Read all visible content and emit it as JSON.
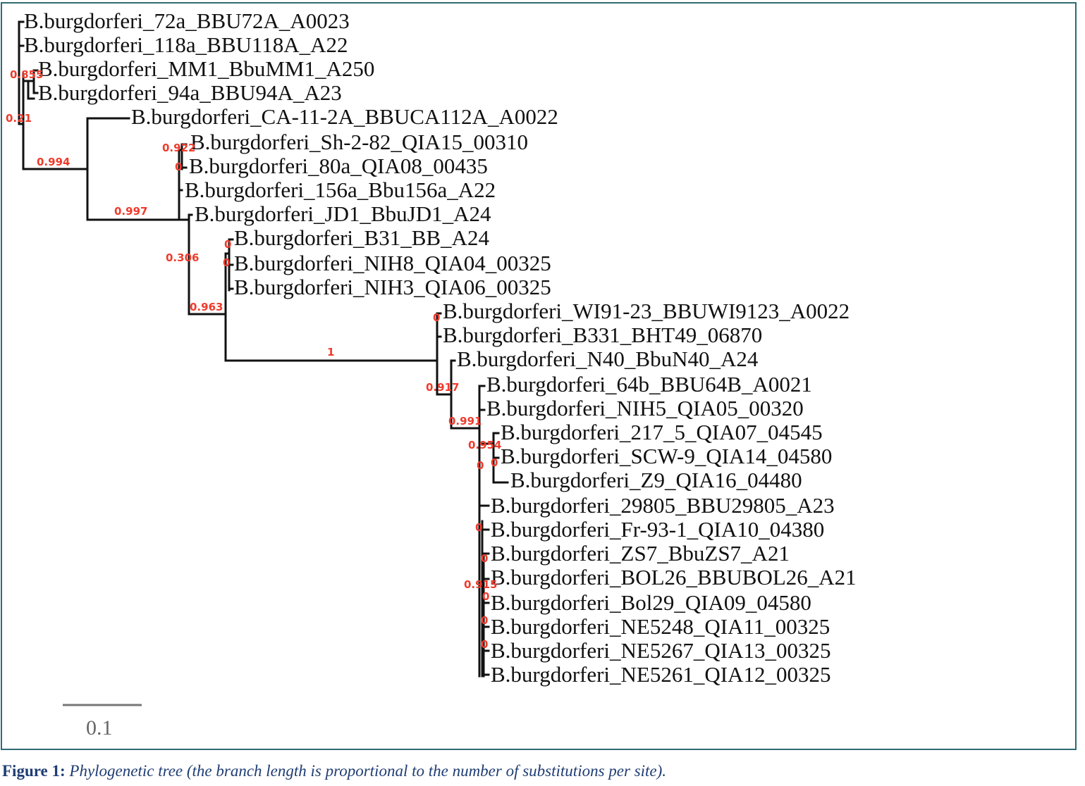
{
  "tree": {
    "leaves": [
      "B.burgdorferi_72a_BBU72A_A0023",
      "B.burgdorferi_118a_BBU118A_A22",
      "B.burgdorferi_MM1_BbuMM1_A250",
      "B.burgdorferi_94a_BBU94A_A23",
      "B.burgdorferi_CA-11-2A_BBUCA112A_A0022",
      "B.burgdorferi_Sh-2-82_QIA15_00310",
      "B.burgdorferi_80a_QIA08_00435",
      "B.burgdorferi_156a_Bbu156a_A22",
      "B.burgdorferi_JD1_BbuJD1_A24",
      "B.burgdorferi_B31_BB_A24",
      "B.burgdorferi_NIH8_QIA04_00325",
      "B.burgdorferi_NIH3_QIA06_00325",
      "B.burgdorferi_WI91-23_BBUWI9123_A0022",
      "B.burgdorferi_B331_BHT49_06870",
      "B.burgdorferi_N40_BbuN40_A24",
      "B.burgdorferi_64b_BBU64B_A0021",
      "B.burgdorferi_NIH5_QIA05_00320",
      "B.burgdorferi_217_5_QIA07_04545",
      "B.burgdorferi_SCW-9_QIA14_04580",
      "B.burgdorferi_Z9_QIA16_04480",
      "B.burgdorferi_29805_BBU29805_A23",
      "B.burgdorferi_Fr-93-1_QIA10_04380",
      "B.burgdorferi_ZS7_BbuZS7_A21",
      "B.burgdorferi_BOL26_BBUBOL26_A21",
      "B.burgdorferi_Bol29_QIA09_04580",
      "B.burgdorferi_NE5248_QIA11_00325",
      "B.burgdorferi_NE5267_QIA13_00325",
      "B.burgdorferi_NE5261_QIA12_00325"
    ],
    "support_values": [
      "0.855",
      "0.21",
      "0.994",
      "0.997",
      "0.922",
      "0",
      "0.306",
      "0",
      "0",
      "0.963",
      "1",
      "0",
      "0.917",
      "0.991",
      "0.954",
      "0",
      "0",
      "0",
      "0",
      "0.915",
      "0",
      "0",
      "0"
    ],
    "support_color": "#ef3b2c",
    "scale_bar_label": "0.1"
  },
  "caption": {
    "label": "Figure 1:",
    "text": "Phylogenetic tree (the branch length is proportional to the number of substitutions per site)."
  },
  "colors": {
    "frame": "#2f6b73",
    "caption": "#1f3d73",
    "branch": "#111111"
  }
}
